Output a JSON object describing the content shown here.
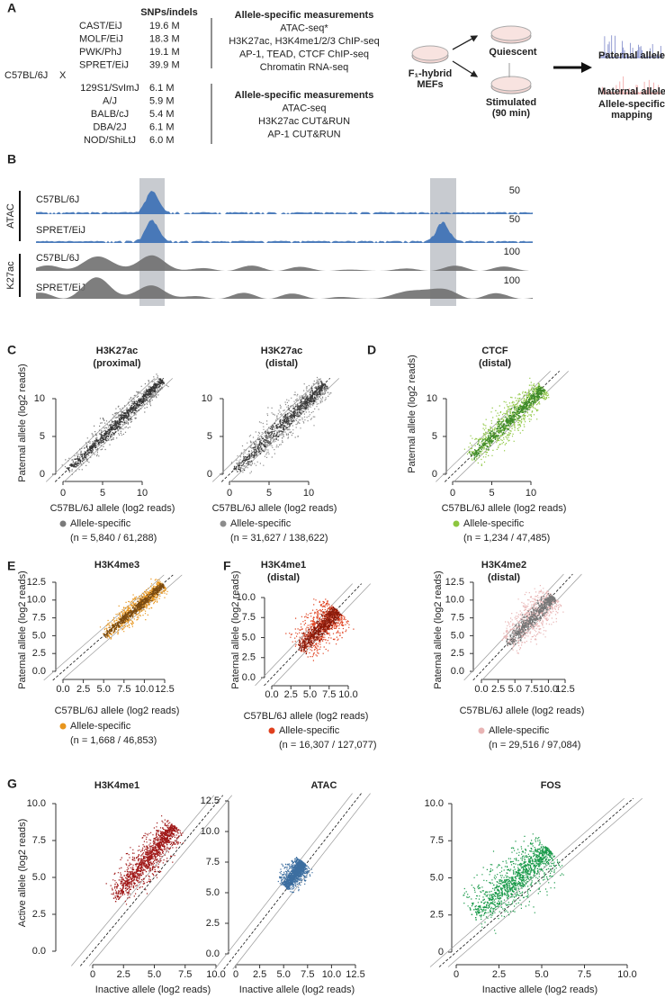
{
  "panel_a": {
    "label": "A",
    "snps_header": "SNPs/indels",
    "cross_left": "C57BL/6J",
    "cross_symbol": "X",
    "groups": [
      {
        "strains": [
          {
            "name": "CAST/EiJ",
            "snps": "19.6 M"
          },
          {
            "name": "MOLF/EiJ",
            "snps": "18.3 M"
          },
          {
            "name": "PWK/PhJ",
            "snps": "19.1 M"
          },
          {
            "name": "SPRET/EiJ",
            "snps": "39.9 M"
          }
        ],
        "heading": "Allele-specific measurements",
        "items": [
          "ATAC-seq*",
          "H3K27ac, H3K4me1/2/3 ChIP-seq",
          "AP-1, TEAD, CTCF ChIP-seq",
          "Chromatin RNA-seq"
        ]
      },
      {
        "strains": [
          {
            "name": "129S1/SvImJ",
            "snps": "6.1 M"
          },
          {
            "name": "A/J",
            "snps": "5.9 M"
          },
          {
            "name": "BALB/cJ",
            "snps": "5.4 M"
          },
          {
            "name": "DBA/2J",
            "snps": "6.1 M"
          },
          {
            "name": "NOD/ShiLtJ",
            "snps": "6.0 M"
          }
        ],
        "heading": "Allele-specific measurements",
        "items": [
          "ATAC-seq",
          "H3K27ac CUT&RUN",
          "AP-1 CUT&RUN"
        ]
      }
    ],
    "cells": [
      "F₁-hybrid",
      "MEFs"
    ],
    "quiescent": "Quiescent",
    "stimulated": [
      "Stimulated",
      "(90 min)"
    ],
    "paternal": "Paternal allele",
    "maternal": "Maternal allele",
    "mapping": [
      "Allele-specific",
      "mapping"
    ]
  },
  "panel_b": {
    "label": "B",
    "groups": [
      "ATAC",
      "K27ac"
    ],
    "tracks": [
      {
        "name": "C57BL/6J",
        "scale": "50"
      },
      {
        "name": "SPRET/EiJ",
        "scale": "50"
      },
      {
        "name": "C57BL/6J",
        "scale": "100"
      },
      {
        "name": "SPRET/EiJ",
        "scale": "100"
      }
    ]
  },
  "scatter_panels": [
    {
      "label": "C",
      "title": [
        "H3K27ac",
        "(proximal)"
      ],
      "y_label": "Paternal allele (log2 reads)",
      "x_label": "C57BL/6J allele (log2 reads)",
      "xticks": [
        "0",
        "5",
        "10"
      ],
      "yticks": [
        "0",
        "5",
        "10"
      ],
      "legend": "Allele-specific",
      "n": "(n = 5,840 / 61,288)"
    },
    {
      "title": [
        "H3K27ac",
        "(distal)"
      ],
      "x_label": "C57BL/6J allele (log2 reads)",
      "xticks": [
        "0",
        "5",
        "10"
      ],
      "yticks": [
        "0",
        "5",
        "10"
      ],
      "legend": "Allele-specific",
      "n": "(n = 31,627 / 138,622)"
    },
    {
      "label": "D",
      "title": [
        "CTCF",
        "(distal)"
      ],
      "y_label": "Paternal allele (log2 reads)",
      "x_label": "C57BL/6J allele (log2 reads)",
      "xticks": [
        "0",
        "5",
        "10"
      ],
      "yticks": [
        "0",
        "5",
        "10"
      ],
      "legend": "Allele-specific",
      "n": "(n = 1,234 / 47,485)"
    },
    {
      "label": "E",
      "title": [
        "H3K4me3"
      ],
      "y_label": "Paternal allele (log2 reads)",
      "x_label": "C57BL/6J allele (log2 reads)",
      "xticks": [
        "0.0",
        "2.5",
        "5.0",
        "7.5",
        "10.0",
        "12.5"
      ],
      "yticks": [
        "0.0",
        "2.5",
        "5.0",
        "7.5",
        "10.0",
        "12.5"
      ],
      "legend": "Allele-specific",
      "n": "(n = 1,668 / 46,853)"
    },
    {
      "label": "F",
      "title": [
        "H3K4me1",
        "(distal)"
      ],
      "y_label": "Paternal allele (log2 reads)",
      "x_label": "C57BL/6J allele (log2 reads)",
      "xticks": [
        "0.0",
        "2.5",
        "5.0",
        "7.5",
        "10.0"
      ],
      "yticks": [
        "0.0",
        "2.5",
        "5.0",
        "7.5",
        "10.0"
      ],
      "legend": "Allele-specific",
      "n": "(n = 16,307 / 127,077)"
    },
    {
      "title": [
        "H3K4me2",
        "(distal)"
      ],
      "y_label": "Paternal allele (log2 reads)",
      "x_label": "C57BL/6J allele (log2 reads)",
      "xticks": [
        "0.0",
        "2.5",
        "5.0",
        "7.5",
        "10.0",
        "12.5"
      ],
      "yticks": [
        "0.0",
        "2.5",
        "5.0",
        "7.5",
        "10.0",
        "12.5"
      ],
      "legend": "Allele-specific",
      "n": "(n = 29,516 / 97,084)"
    },
    {
      "label": "G",
      "title": [
        "H3K4me1"
      ],
      "y_label": "Active allele (log2 reads)",
      "x_label": "Inactive allele (log2 reads)",
      "xticks": [
        "0",
        "2.5",
        "5.0",
        "7.5",
        "10.0"
      ],
      "yticks": [
        "0.0",
        "2.5",
        "5.0",
        "7.5",
        "10.0"
      ]
    },
    {
      "title": [
        "ATAC"
      ],
      "x_label": "Inactive allele (log2 reads)",
      "xticks": [
        "0",
        "2.5",
        "5.0",
        "7.5",
        "10.0",
        "12.5"
      ],
      "yticks": [
        "0.0",
        "2.5",
        "5.0",
        "7.5",
        "10.0",
        "12.5"
      ]
    },
    {
      "title": [
        "FOS"
      ],
      "x_label": "Inactive allele (log2 reads)",
      "xticks": [
        "0",
        "2.5",
        "5.0",
        "7.5",
        "10.0"
      ],
      "yticks": [
        "0",
        "2.5",
        "5.0",
        "7.5",
        "10.0"
      ]
    }
  ]
}
